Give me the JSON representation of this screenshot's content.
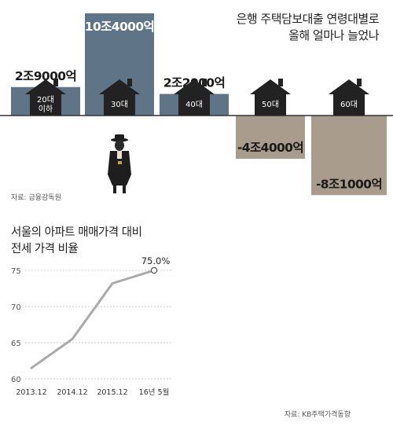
{
  "titles": {
    "top_line1": "은행 주택담보대출 연령대별로",
    "top_line2": "올해 얼마나 늘었나",
    "bottom_line1": "서울의 아파트 매매가격 대비",
    "bottom_line2": "전세 가격 비율"
  },
  "sources": {
    "top": "자료: 금융감독원",
    "bottom": "자료: KB주택가격동향"
  },
  "colors": {
    "positive": "#5f7486",
    "negative": "#a99c8c",
    "line": "#aaaaaa",
    "house": "#222222"
  },
  "chart_data": [
    {
      "type": "bar",
      "categories": [
        "20대\n이하",
        "30대",
        "40대",
        "50대",
        "60대"
      ],
      "values": [
        29000,
        104000,
        22000,
        -44000,
        -81000
      ],
      "value_labels": [
        "2조9000억",
        "10조4000억",
        "2조2000억",
        "-4조4000억",
        "-8조1000억"
      ],
      "unit": "억원",
      "title": "은행 주택담보대출 연령대별로 올해 얼마나 늘었나"
    },
    {
      "type": "line",
      "x": [
        "2013.12",
        "2014.12",
        "2015.12",
        "16년 5월"
      ],
      "values": [
        61.5,
        65.5,
        73.2,
        75.0
      ],
      "end_label": "75.0%",
      "yticks": [
        60,
        65,
        70,
        75
      ],
      "ylim": [
        60,
        75
      ],
      "grid": true,
      "title": "서울의 아파트 매매가격 대비 전세 가격 비율"
    }
  ]
}
